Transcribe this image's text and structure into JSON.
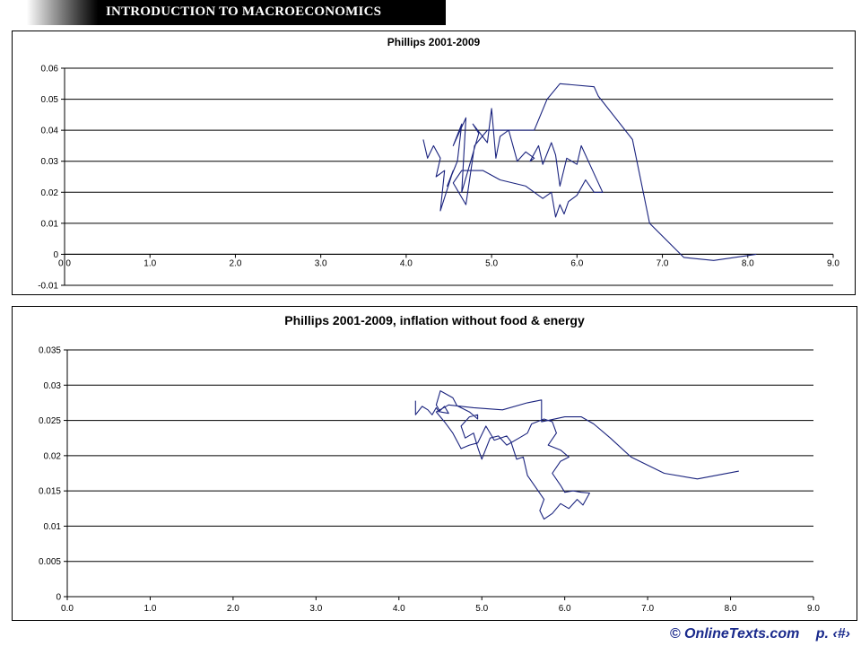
{
  "header": {
    "title": "INTRODUCTION TO MACROECONOMICS"
  },
  "footer": {
    "copyright": "© OnlineTexts.com",
    "page": "p. ‹#›"
  },
  "colors": {
    "series": "#1a237e",
    "grid": "#000000",
    "banner": "#000000"
  },
  "chart_data": [
    {
      "type": "line",
      "title": "Phillips 2001-2009",
      "xlabel": "",
      "ylabel": "",
      "xlim": [
        0,
        9
      ],
      "ylim": [
        -0.01,
        0.06
      ],
      "x_ticks": [
        "0.0",
        "1.0",
        "2.0",
        "3.0",
        "4.0",
        "5.0",
        "6.0",
        "7.0",
        "8.0",
        "9.0"
      ],
      "y_ticks": [
        "-0.01",
        "0",
        "0.01",
        "0.02",
        "0.03",
        "0.04",
        "0.05",
        "0.06"
      ],
      "grid": "horizontal",
      "legend": "none",
      "series": [
        {
          "points": [
            [
              4.2,
              0.037
            ],
            [
              4.25,
              0.031
            ],
            [
              4.32,
              0.035
            ],
            [
              4.4,
              0.031
            ],
            [
              4.35,
              0.025
            ],
            [
              4.45,
              0.027
            ],
            [
              4.4,
              0.014
            ],
            [
              4.55,
              0.027
            ],
            [
              4.48,
              0.022
            ],
            [
              4.6,
              0.03
            ],
            [
              4.65,
              0.042
            ],
            [
              4.55,
              0.035
            ],
            [
              4.7,
              0.044
            ],
            [
              4.65,
              0.02
            ],
            [
              4.85,
              0.039
            ],
            [
              4.78,
              0.042
            ],
            [
              4.95,
              0.036
            ],
            [
              5.0,
              0.047
            ],
            [
              5.05,
              0.031
            ],
            [
              5.1,
              0.038
            ],
            [
              5.2,
              0.04
            ],
            [
              5.3,
              0.03
            ],
            [
              5.4,
              0.033
            ],
            [
              5.5,
              0.031
            ],
            [
              5.45,
              0.03
            ],
            [
              5.55,
              0.035
            ],
            [
              5.6,
              0.029
            ],
            [
              5.7,
              0.036
            ],
            [
              5.75,
              0.032
            ],
            [
              5.8,
              0.022
            ],
            [
              5.88,
              0.031
            ],
            [
              6.0,
              0.029
            ],
            [
              6.05,
              0.035
            ],
            [
              6.15,
              0.029
            ],
            [
              6.3,
              0.02
            ],
            [
              6.2,
              0.02
            ],
            [
              6.1,
              0.024
            ],
            [
              6.0,
              0.019
            ],
            [
              5.9,
              0.017
            ],
            [
              5.85,
              0.013
            ],
            [
              5.8,
              0.016
            ],
            [
              5.75,
              0.012
            ],
            [
              5.7,
              0.02
            ],
            [
              5.6,
              0.018
            ],
            [
              5.4,
              0.022
            ],
            [
              5.1,
              0.024
            ],
            [
              4.9,
              0.027
            ],
            [
              4.65,
              0.027
            ],
            [
              4.55,
              0.023
            ],
            [
              4.7,
              0.016
            ],
            [
              4.8,
              0.035
            ],
            [
              4.95,
              0.04
            ],
            [
              5.2,
              0.04
            ],
            [
              5.4,
              0.04
            ],
            [
              5.5,
              0.04
            ],
            [
              5.65,
              0.05
            ],
            [
              5.8,
              0.055
            ],
            [
              6.2,
              0.054
            ],
            [
              6.25,
              0.051
            ],
            [
              6.65,
              0.037
            ],
            [
              6.85,
              0.01
            ],
            [
              7.25,
              -0.001
            ],
            [
              7.6,
              -0.002
            ],
            [
              8.1,
              0.0
            ]
          ]
        }
      ]
    },
    {
      "type": "line",
      "title": "Phillips 2001-2009, inflation without food & energy",
      "xlabel": "",
      "ylabel": "",
      "xlim": [
        0,
        9
      ],
      "ylim": [
        0,
        0.035
      ],
      "x_ticks": [
        "0.0",
        "1.0",
        "2.0",
        "3.0",
        "4.0",
        "5.0",
        "6.0",
        "7.0",
        "8.0",
        "9.0"
      ],
      "y_ticks": [
        "0",
        "0.005",
        "0.01",
        "0.015",
        "0.02",
        "0.025",
        "0.03",
        "0.035"
      ],
      "grid": "horizontal",
      "legend": "none",
      "series": [
        {
          "points": [
            [
              4.2,
              0.0278
            ],
            [
              4.2,
              0.0258
            ],
            [
              4.28,
              0.027
            ],
            [
              4.35,
              0.0265
            ],
            [
              4.4,
              0.0258
            ],
            [
              4.45,
              0.0268
            ],
            [
              4.48,
              0.0262
            ],
            [
              4.55,
              0.027
            ],
            [
              4.6,
              0.026
            ],
            [
              4.5,
              0.0262
            ],
            [
              4.45,
              0.0272
            ],
            [
              4.5,
              0.0292
            ],
            [
              4.65,
              0.0282
            ],
            [
              4.7,
              0.0271
            ],
            [
              4.85,
              0.0262
            ],
            [
              4.95,
              0.0252
            ],
            [
              4.95,
              0.0258
            ],
            [
              4.85,
              0.0255
            ],
            [
              4.75,
              0.0242
            ],
            [
              4.8,
              0.0225
            ],
            [
              4.9,
              0.0232
            ],
            [
              4.95,
              0.0212
            ],
            [
              5.0,
              0.0195
            ],
            [
              5.1,
              0.0225
            ],
            [
              5.2,
              0.0228
            ],
            [
              5.3,
              0.0215
            ],
            [
              5.45,
              0.0225
            ],
            [
              5.55,
              0.0232
            ],
            [
              5.6,
              0.0245
            ],
            [
              5.75,
              0.0252
            ],
            [
              5.85,
              0.0248
            ],
            [
              5.9,
              0.0232
            ],
            [
              5.8,
              0.0215
            ],
            [
              5.95,
              0.0208
            ],
            [
              6.05,
              0.0198
            ],
            [
              5.95,
              0.0192
            ],
            [
              5.85,
              0.0175
            ],
            [
              5.95,
              0.0158
            ],
            [
              6.0,
              0.0148
            ],
            [
              6.1,
              0.015
            ],
            [
              6.2,
              0.0148
            ],
            [
              6.3,
              0.0147
            ],
            [
              6.22,
              0.013
            ],
            [
              6.15,
              0.0138
            ],
            [
              6.05,
              0.0125
            ],
            [
              5.95,
              0.0132
            ],
            [
              5.85,
              0.0118
            ],
            [
              5.75,
              0.011
            ],
            [
              5.7,
              0.0122
            ],
            [
              5.75,
              0.0138
            ],
            [
              5.65,
              0.0155
            ],
            [
              5.55,
              0.0172
            ],
            [
              5.5,
              0.0198
            ],
            [
              5.42,
              0.0195
            ],
            [
              5.35,
              0.022
            ],
            [
              5.3,
              0.0228
            ],
            [
              5.15,
              0.0222
            ],
            [
              5.05,
              0.0242
            ],
            [
              4.95,
              0.0218
            ],
            [
              4.85,
              0.0215
            ],
            [
              4.75,
              0.021
            ],
            [
              4.65,
              0.0232
            ],
            [
              4.55,
              0.0248
            ],
            [
              4.45,
              0.0262
            ],
            [
              4.6,
              0.0272
            ],
            [
              4.9,
              0.0268
            ],
            [
              5.25,
              0.0265
            ],
            [
              5.55,
              0.0275
            ],
            [
              5.72,
              0.0279
            ],
            [
              5.72,
              0.0248
            ],
            [
              5.8,
              0.025
            ],
            [
              6.0,
              0.0255
            ],
            [
              6.2,
              0.0255
            ],
            [
              6.35,
              0.0245
            ],
            [
              6.55,
              0.0225
            ],
            [
              6.8,
              0.0198
            ],
            [
              7.2,
              0.0175
            ],
            [
              7.6,
              0.0167
            ],
            [
              8.1,
              0.0178
            ]
          ]
        }
      ]
    }
  ]
}
